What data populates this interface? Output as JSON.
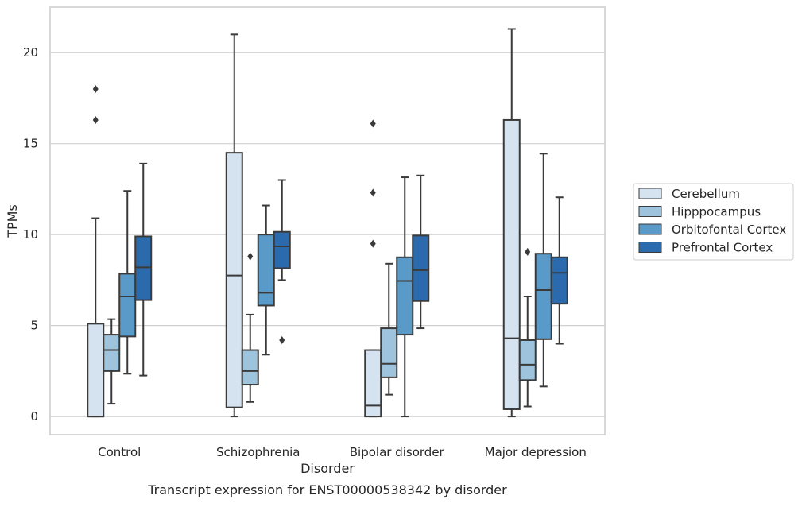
{
  "caption": "Transcript expression for ENST00000538342 by disorder",
  "chart_data": {
    "type": "boxplot",
    "title": "",
    "xlabel": "Disorder",
    "ylabel": "TPMs",
    "ylim": [
      -1,
      22.5
    ],
    "yticks": [
      0,
      5,
      10,
      15,
      20
    ],
    "grid": "horizontal",
    "legend_position": "right",
    "categories": [
      "Control",
      "Schizophrenia",
      "Bipolar disorder",
      "Major depression"
    ],
    "series": [
      {
        "name": "Cerebellum",
        "color": "#d5e3f1",
        "boxes": [
          {
            "whisker_low": 0,
            "q1": 0,
            "median": 0,
            "q3": 5.1,
            "whisker_high": 10.9,
            "outliers": [
              16.3,
              18.0
            ]
          },
          {
            "whisker_low": 0,
            "q1": 0.5,
            "median": 7.75,
            "q3": 14.5,
            "whisker_high": 21.0,
            "outliers": []
          },
          {
            "whisker_low": 0,
            "q1": 0,
            "median": 0.6,
            "q3": 3.65,
            "whisker_high": 3.65,
            "outliers": [
              9.5,
              12.3,
              16.1
            ]
          },
          {
            "whisker_low": 0,
            "q1": 0.4,
            "median": 4.3,
            "q3": 16.3,
            "whisker_high": 21.3,
            "outliers": []
          }
        ]
      },
      {
        "name": "Hipppocampus",
        "color": "#9dc3dd",
        "boxes": [
          {
            "whisker_low": 0.7,
            "q1": 2.5,
            "median": 3.65,
            "q3": 4.5,
            "whisker_high": 5.35,
            "outliers": []
          },
          {
            "whisker_low": 0.8,
            "q1": 1.75,
            "median": 2.5,
            "q3": 3.65,
            "whisker_high": 5.6,
            "outliers": [
              8.8
            ]
          },
          {
            "whisker_low": 1.2,
            "q1": 2.15,
            "median": 2.9,
            "q3": 4.85,
            "whisker_high": 8.4,
            "outliers": []
          },
          {
            "whisker_low": 0.55,
            "q1": 2.0,
            "median": 2.85,
            "q3": 4.2,
            "whisker_high": 6.6,
            "outliers": [
              9.05
            ]
          }
        ]
      },
      {
        "name": "Orbitofontal Cortex",
        "color": "#5a9ac8",
        "boxes": [
          {
            "whisker_low": 2.35,
            "q1": 4.4,
            "median": 6.6,
            "q3": 7.85,
            "whisker_high": 12.4,
            "outliers": []
          },
          {
            "whisker_low": 3.4,
            "q1": 6.1,
            "median": 6.8,
            "q3": 10.0,
            "whisker_high": 11.6,
            "outliers": []
          },
          {
            "whisker_low": 0,
            "q1": 4.5,
            "median": 7.45,
            "q3": 8.75,
            "whisker_high": 13.15,
            "outliers": []
          },
          {
            "whisker_low": 1.65,
            "q1": 4.25,
            "median": 6.95,
            "q3": 8.95,
            "whisker_high": 14.45,
            "outliers": []
          }
        ]
      },
      {
        "name": "Prefrontal Cortex",
        "color": "#2a6aad",
        "boxes": [
          {
            "whisker_low": 2.25,
            "q1": 6.4,
            "median": 8.2,
            "q3": 9.9,
            "whisker_high": 13.9,
            "outliers": []
          },
          {
            "whisker_low": 7.5,
            "q1": 8.15,
            "median": 9.35,
            "q3": 10.15,
            "whisker_high": 13.0,
            "outliers": [
              4.2
            ]
          },
          {
            "whisker_low": 4.85,
            "q1": 6.35,
            "median": 8.05,
            "q3": 9.95,
            "whisker_high": 13.25,
            "outliers": []
          },
          {
            "whisker_low": 4.0,
            "q1": 6.2,
            "median": 7.9,
            "q3": 8.75,
            "whisker_high": 12.05,
            "outliers": []
          }
        ]
      }
    ]
  }
}
